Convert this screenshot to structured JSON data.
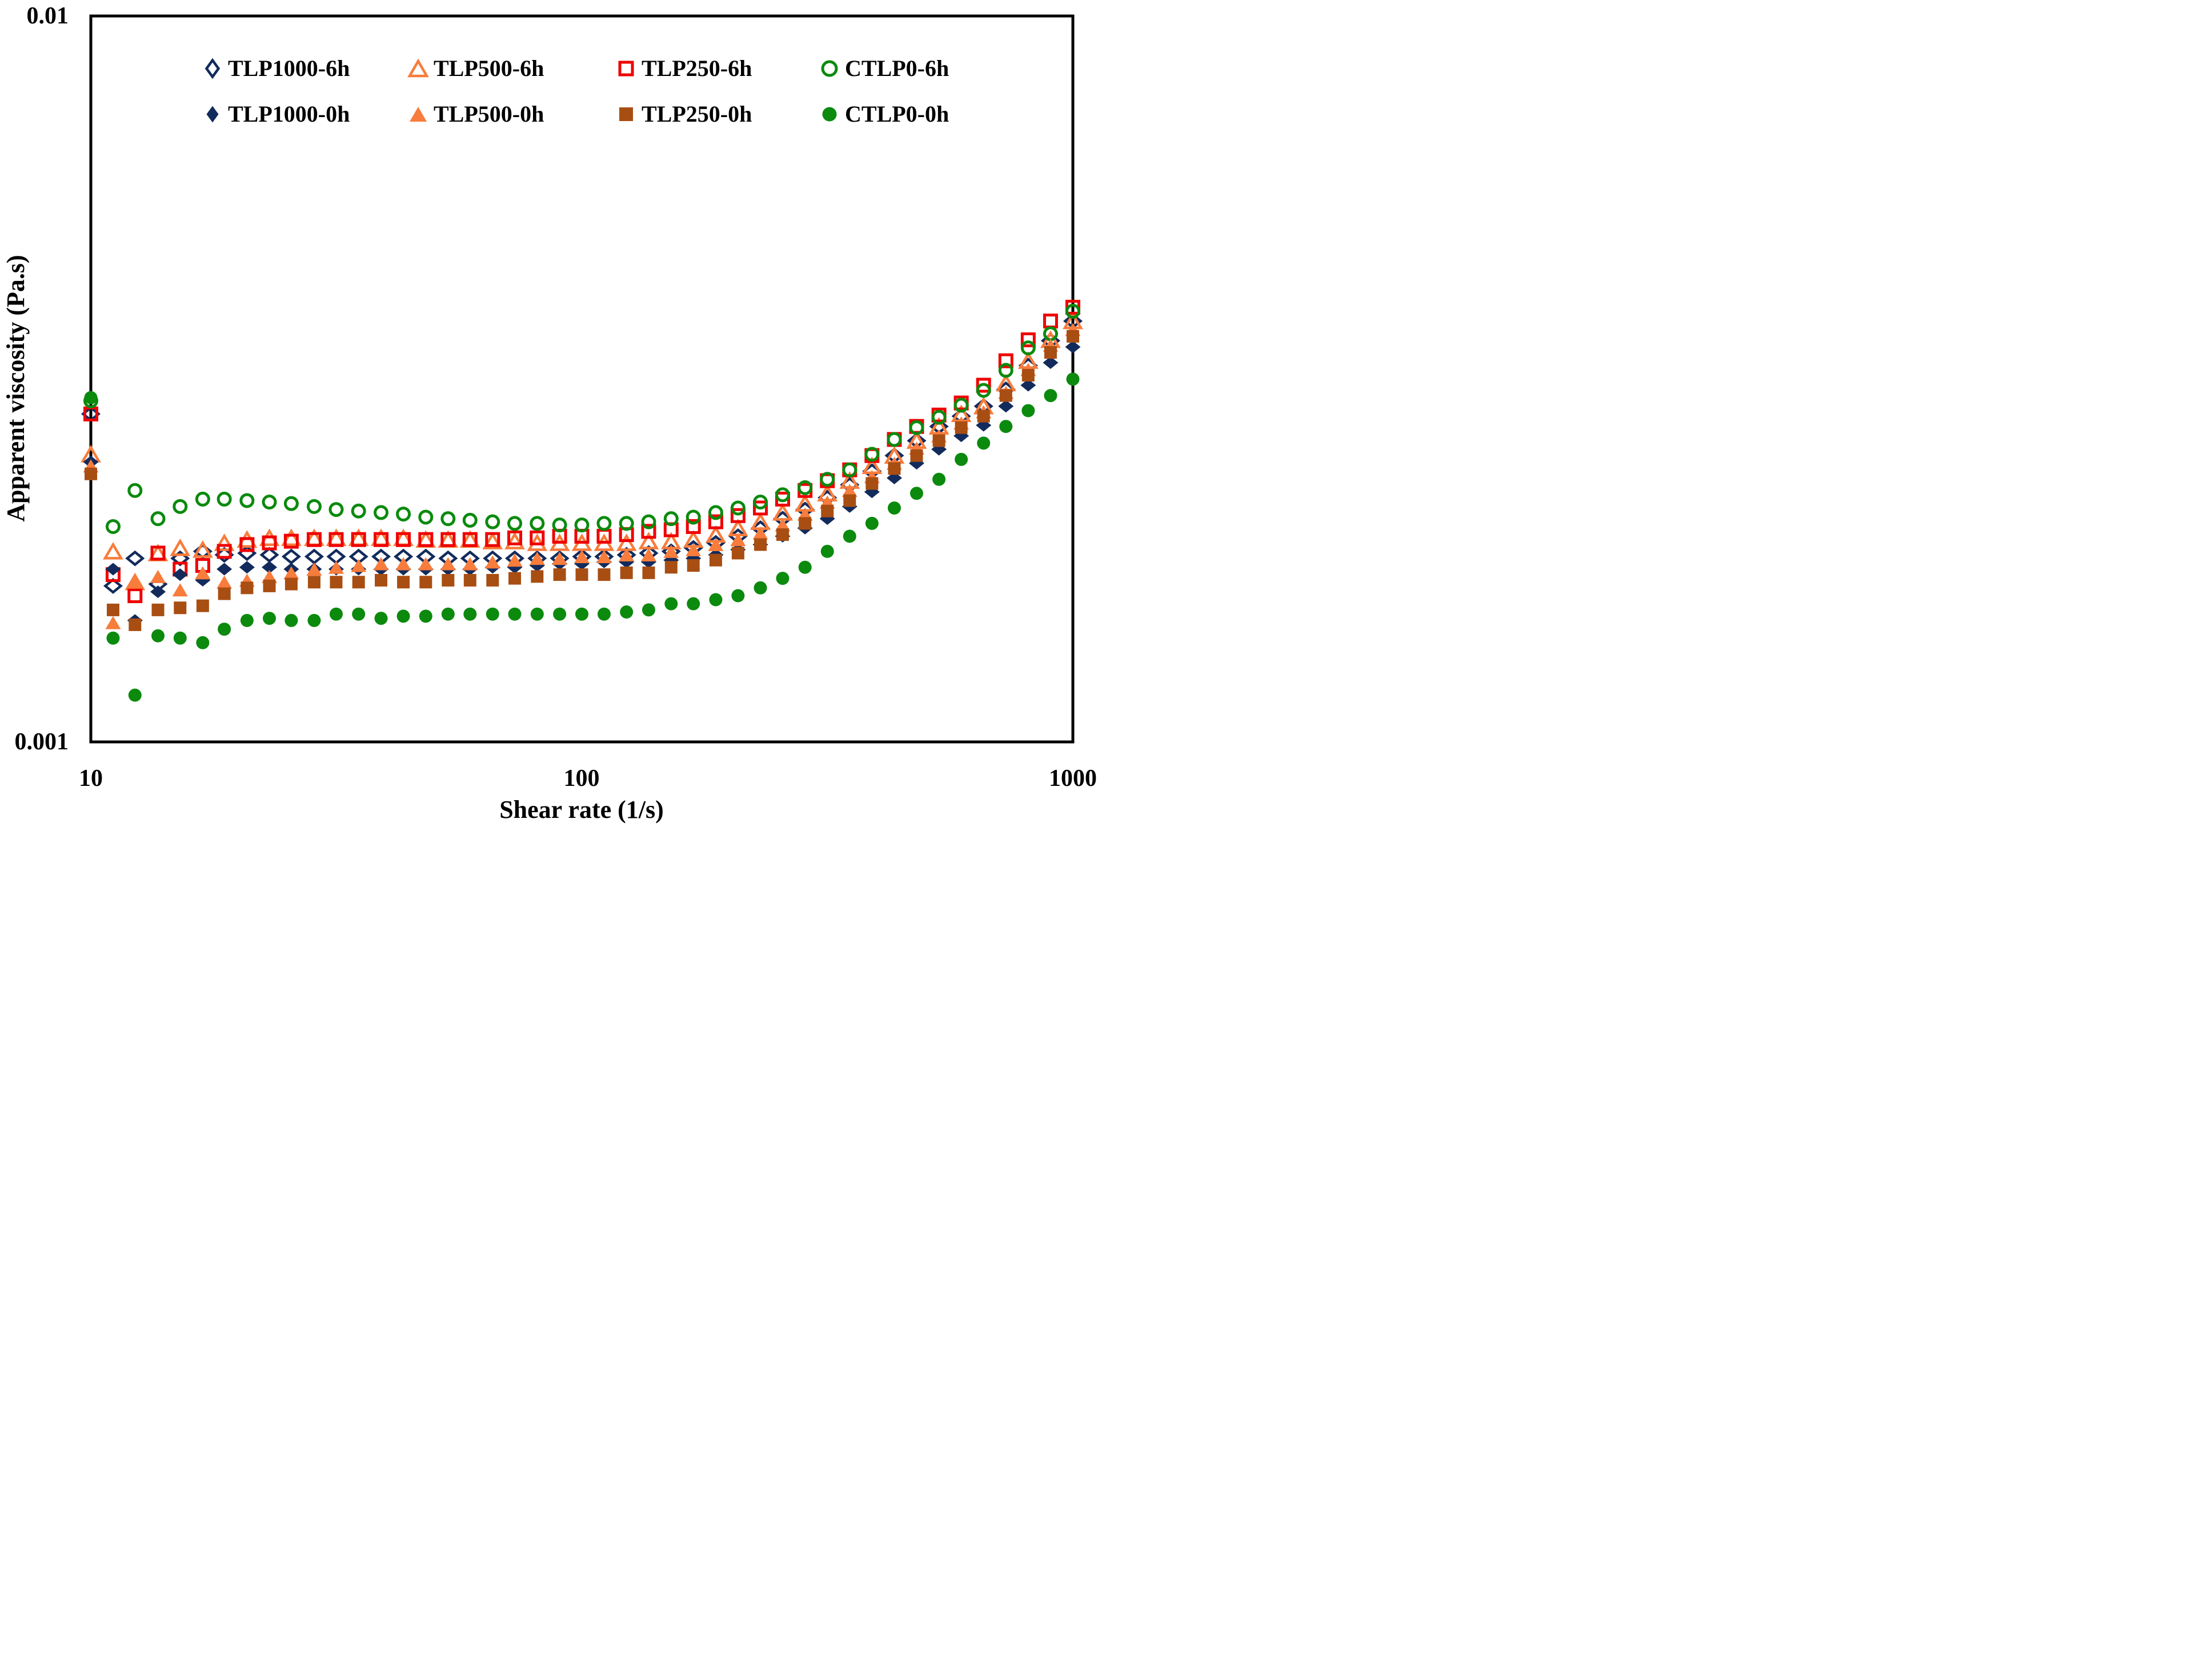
{
  "chart_data": {
    "type": "scatter",
    "title": "",
    "xlabel": "Shear rate (1/s)",
    "ylabel": "Apparent viscosity (Pa.s)",
    "xscale": "log",
    "yscale": "log",
    "xlim": [
      10,
      1000
    ],
    "ylim": [
      0.001,
      0.01
    ],
    "xticks": [
      "10",
      "100",
      "1000"
    ],
    "yticks": [
      "0.01",
      "0.001"
    ],
    "grid": false,
    "frame": true,
    "legend_position": "top-inside-two-rows",
    "x": [
      10,
      11.1,
      12.3,
      13.7,
      15.2,
      16.9,
      18.7,
      20.8,
      23.1,
      25.6,
      28.5,
      31.6,
      35.1,
      39,
      43.3,
      48.1,
      53.4,
      59.2,
      65.8,
      73,
      81.1,
      90.1,
      100,
      111,
      123.3,
      136.8,
      152,
      168.7,
      187.4,
      208,
      231,
      256.4,
      284.8,
      316.2,
      351.1,
      389.8,
      432.9,
      480.6,
      533.7,
      592.5,
      657.9,
      730.5,
      811.1,
      900.7,
      1000
    ],
    "series": [
      {
        "name": "TLP1000-6h",
        "marker": "diamond",
        "style": "open",
        "color": "#122B5C",
        "values": [
          0.00283,
          0.00164,
          0.00179,
          0.00165,
          0.00179,
          0.00183,
          0.00181,
          0.00182,
          0.00181,
          0.0018,
          0.0018,
          0.0018,
          0.0018,
          0.0018,
          0.0018,
          0.0018,
          0.00179,
          0.00179,
          0.00179,
          0.00179,
          0.00179,
          0.00179,
          0.0018,
          0.0018,
          0.00181,
          0.00182,
          0.00183,
          0.00185,
          0.00188,
          0.00192,
          0.00197,
          0.00203,
          0.00209,
          0.00217,
          0.00226,
          0.00236,
          0.00248,
          0.0026,
          0.00272,
          0.00281,
          0.0029,
          0.00306,
          0.0033,
          0.00357,
          0.0038
        ]
      },
      {
        "name": "TLP500-6h",
        "marker": "triangle",
        "style": "open",
        "color": "#F87C3C",
        "values": [
          0.00249,
          0.00183,
          0.00166,
          0.00182,
          0.00185,
          0.00184,
          0.00188,
          0.0019,
          0.00191,
          0.00191,
          0.00191,
          0.00191,
          0.00191,
          0.00191,
          0.00191,
          0.0019,
          0.0019,
          0.0019,
          0.00189,
          0.00189,
          0.00188,
          0.00188,
          0.00188,
          0.00188,
          0.00188,
          0.00189,
          0.00189,
          0.0019,
          0.00193,
          0.00197,
          0.00201,
          0.00207,
          0.00213,
          0.0022,
          0.00229,
          0.0024,
          0.00248,
          0.0026,
          0.00272,
          0.00283,
          0.0029,
          0.00312,
          0.00335,
          0.00358,
          0.0038
        ]
      },
      {
        "name": "TLP250-6h",
        "marker": "square",
        "style": "open",
        "color": "#EF0000",
        "values": [
          0.00283,
          0.0017,
          0.00159,
          0.00182,
          0.00173,
          0.00175,
          0.00183,
          0.00187,
          0.00188,
          0.00189,
          0.0019,
          0.0019,
          0.0019,
          0.0019,
          0.0019,
          0.0019,
          0.0019,
          0.0019,
          0.0019,
          0.00191,
          0.00191,
          0.00192,
          0.00192,
          0.00192,
          0.00193,
          0.00195,
          0.00196,
          0.00198,
          0.00201,
          0.00205,
          0.0021,
          0.00216,
          0.00222,
          0.00229,
          0.00237,
          0.00248,
          0.00261,
          0.00272,
          0.00282,
          0.00293,
          0.0031,
          0.00335,
          0.00358,
          0.0038,
          0.00397
        ]
      },
      {
        "name": "CTLP0-6h",
        "marker": "circle",
        "style": "open",
        "color": "#0B8A0E",
        "values": [
          0.00295,
          0.00198,
          0.00222,
          0.00203,
          0.00211,
          0.00216,
          0.00216,
          0.00215,
          0.00214,
          0.00213,
          0.00211,
          0.00209,
          0.00208,
          0.00207,
          0.00206,
          0.00204,
          0.00203,
          0.00202,
          0.00201,
          0.002,
          0.002,
          0.00199,
          0.00199,
          0.002,
          0.002,
          0.00201,
          0.00203,
          0.00204,
          0.00207,
          0.0021,
          0.00214,
          0.00219,
          0.00224,
          0.0023,
          0.00237,
          0.00249,
          0.00261,
          0.00271,
          0.0028,
          0.00291,
          0.00305,
          0.00325,
          0.00349,
          0.00365,
          0.00392
        ]
      },
      {
        "name": "TLP1000-0h",
        "marker": "diamond",
        "style": "filled",
        "color": "#122B5C",
        "values": [
          0.00243,
          0.00173,
          0.00147,
          0.00161,
          0.0017,
          0.00167,
          0.00173,
          0.00174,
          0.00174,
          0.00173,
          0.00173,
          0.00173,
          0.00173,
          0.00173,
          0.00173,
          0.00173,
          0.00173,
          0.00173,
          0.00174,
          0.00174,
          0.00175,
          0.00176,
          0.00176,
          0.00177,
          0.00177,
          0.00177,
          0.00178,
          0.00179,
          0.00181,
          0.00184,
          0.00187,
          0.00192,
          0.00197,
          0.00203,
          0.00211,
          0.00221,
          0.00231,
          0.00242,
          0.00253,
          0.00264,
          0.00273,
          0.0029,
          0.0031,
          0.00333,
          0.0035
        ]
      },
      {
        "name": "TLP500-0h",
        "marker": "triangle",
        "style": "filled",
        "color": "#F87C3C",
        "values": [
          0.0024,
          0.00146,
          0.00166,
          0.00169,
          0.00162,
          0.00171,
          0.00166,
          0.00167,
          0.00169,
          0.00171,
          0.00173,
          0.00174,
          0.00175,
          0.00176,
          0.00176,
          0.00176,
          0.00176,
          0.00176,
          0.00177,
          0.00178,
          0.00179,
          0.00179,
          0.0018,
          0.0018,
          0.00181,
          0.00181,
          0.00183,
          0.00184,
          0.00187,
          0.0019,
          0.00194,
          0.00199,
          0.00206,
          0.00214,
          0.00222,
          0.00232,
          0.00242,
          0.00254,
          0.00264,
          0.00275,
          0.00285,
          0.00303,
          0.00326,
          0.00352,
          0.0037
        ]
      },
      {
        "name": "TLP250-0h",
        "marker": "square",
        "style": "filled",
        "color": "#A84E13",
        "values": [
          0.00234,
          0.00152,
          0.00145,
          0.00152,
          0.00153,
          0.00154,
          0.0016,
          0.00163,
          0.00164,
          0.00165,
          0.00166,
          0.00166,
          0.00166,
          0.00167,
          0.00166,
          0.00166,
          0.00167,
          0.00167,
          0.00167,
          0.00168,
          0.00169,
          0.0017,
          0.0017,
          0.0017,
          0.00171,
          0.00171,
          0.00174,
          0.00175,
          0.00178,
          0.00182,
          0.00187,
          0.00193,
          0.002,
          0.00208,
          0.00215,
          0.00227,
          0.00238,
          0.00248,
          0.0026,
          0.00271,
          0.00281,
          0.003,
          0.0032,
          0.00344,
          0.00362
        ]
      },
      {
        "name": "CTLP0-0h",
        "marker": "circle",
        "style": "filled",
        "color": "#0B8A0E",
        "values": [
          0.00298,
          0.00139,
          0.00116,
          0.0014,
          0.00139,
          0.00137,
          0.00143,
          0.00147,
          0.00148,
          0.00147,
          0.00147,
          0.0015,
          0.0015,
          0.00148,
          0.00149,
          0.00149,
          0.0015,
          0.0015,
          0.0015,
          0.0015,
          0.0015,
          0.0015,
          0.0015,
          0.0015,
          0.00151,
          0.00152,
          0.00155,
          0.00155,
          0.00157,
          0.00159,
          0.00163,
          0.00168,
          0.00174,
          0.00183,
          0.00192,
          0.002,
          0.0021,
          0.0022,
          0.0023,
          0.00245,
          0.00258,
          0.00272,
          0.00286,
          0.003,
          0.00316
        ]
      }
    ],
    "legend_rows": [
      [
        "TLP1000-6h",
        "TLP500-6h",
        "TLP250-6h",
        "CTLP0-6h"
      ],
      [
        "TLP1000-0h",
        "TLP500-0h",
        "TLP250-0h",
        "CTLP0-0h"
      ]
    ]
  }
}
